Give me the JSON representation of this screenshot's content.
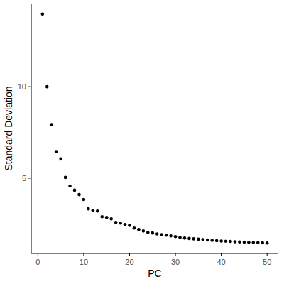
{
  "chart_data": {
    "type": "scatter",
    "x_label": "PC",
    "y_label": "Standard Deviation",
    "x": [
      1,
      2,
      3,
      4,
      5,
      6,
      7,
      8,
      9,
      10,
      11,
      12,
      13,
      14,
      15,
      16,
      17,
      18,
      19,
      20,
      21,
      22,
      23,
      24,
      25,
      26,
      27,
      28,
      29,
      30,
      31,
      32,
      33,
      34,
      35,
      36,
      37,
      38,
      39,
      40,
      41,
      42,
      43,
      44,
      45,
      46,
      47,
      48,
      49,
      50
    ],
    "values": [
      13.98,
      10.0,
      7.93,
      6.45,
      6.05,
      5.04,
      4.57,
      4.34,
      4.1,
      3.83,
      3.32,
      3.24,
      3.2,
      2.89,
      2.85,
      2.77,
      2.58,
      2.54,
      2.46,
      2.42,
      2.27,
      2.19,
      2.11,
      2.03,
      2.0,
      1.95,
      1.91,
      1.88,
      1.84,
      1.8,
      1.76,
      1.72,
      1.7,
      1.68,
      1.66,
      1.64,
      1.62,
      1.6,
      1.58,
      1.56,
      1.55,
      1.54,
      1.52,
      1.51,
      1.5,
      1.49,
      1.48,
      1.47,
      1.46,
      1.45
    ],
    "color": "#000000",
    "marker": "circle",
    "xlim": [
      -1.45,
      52.45
    ],
    "ylim": [
      0.88,
      14.55
    ],
    "xticks": [
      0,
      10,
      20,
      30,
      40,
      50
    ],
    "yticks": [
      5,
      10
    ],
    "grid": false
  }
}
